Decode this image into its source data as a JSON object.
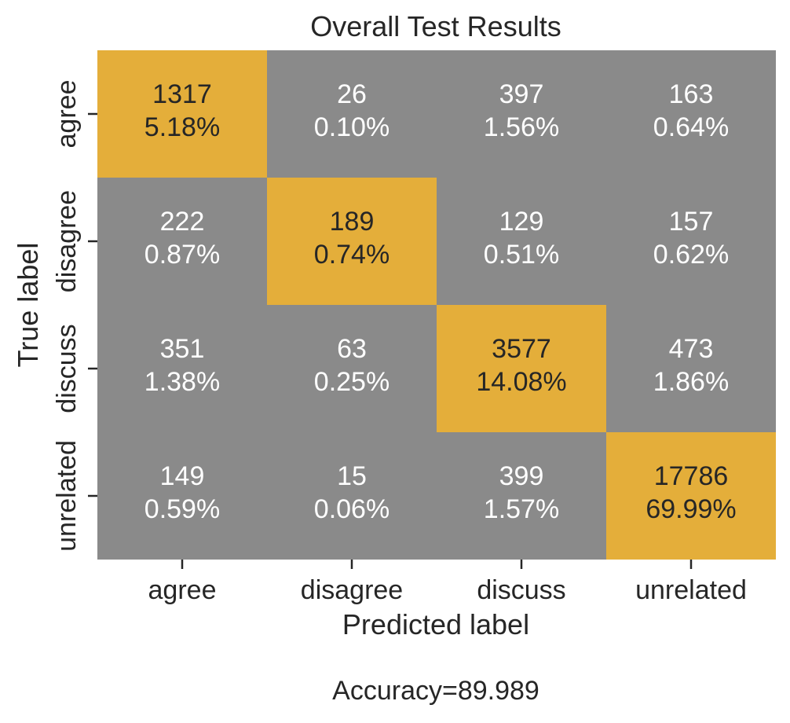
{
  "chart_data": {
    "type": "heatmap",
    "title": "Overall Test Results",
    "xlabel": "Predicted label",
    "ylabel": "True label",
    "x_categories": [
      "agree",
      "disagree",
      "discuss",
      "unrelated"
    ],
    "y_categories": [
      "agree",
      "disagree",
      "discuss",
      "unrelated"
    ],
    "values": [
      [
        1317,
        26,
        397,
        163
      ],
      [
        222,
        189,
        129,
        157
      ],
      [
        351,
        63,
        3577,
        473
      ],
      [
        149,
        15,
        399,
        17786
      ]
    ],
    "percentages": [
      [
        "5.18%",
        "0.10%",
        "1.56%",
        "0.64%"
      ],
      [
        "0.87%",
        "0.74%",
        "0.51%",
        "0.62%"
      ],
      [
        "1.38%",
        "0.25%",
        "14.08%",
        "1.86%"
      ],
      [
        "0.59%",
        "0.06%",
        "1.57%",
        "69.99%"
      ]
    ],
    "colorbar": false,
    "grid": false,
    "colors": {
      "diagonal": "#e4ae3a",
      "off_diagonal": "#8a8a8a",
      "diagonal_text": "#262626",
      "off_diagonal_text": "#ffffff"
    }
  },
  "footer_text": "Accuracy=89.989"
}
